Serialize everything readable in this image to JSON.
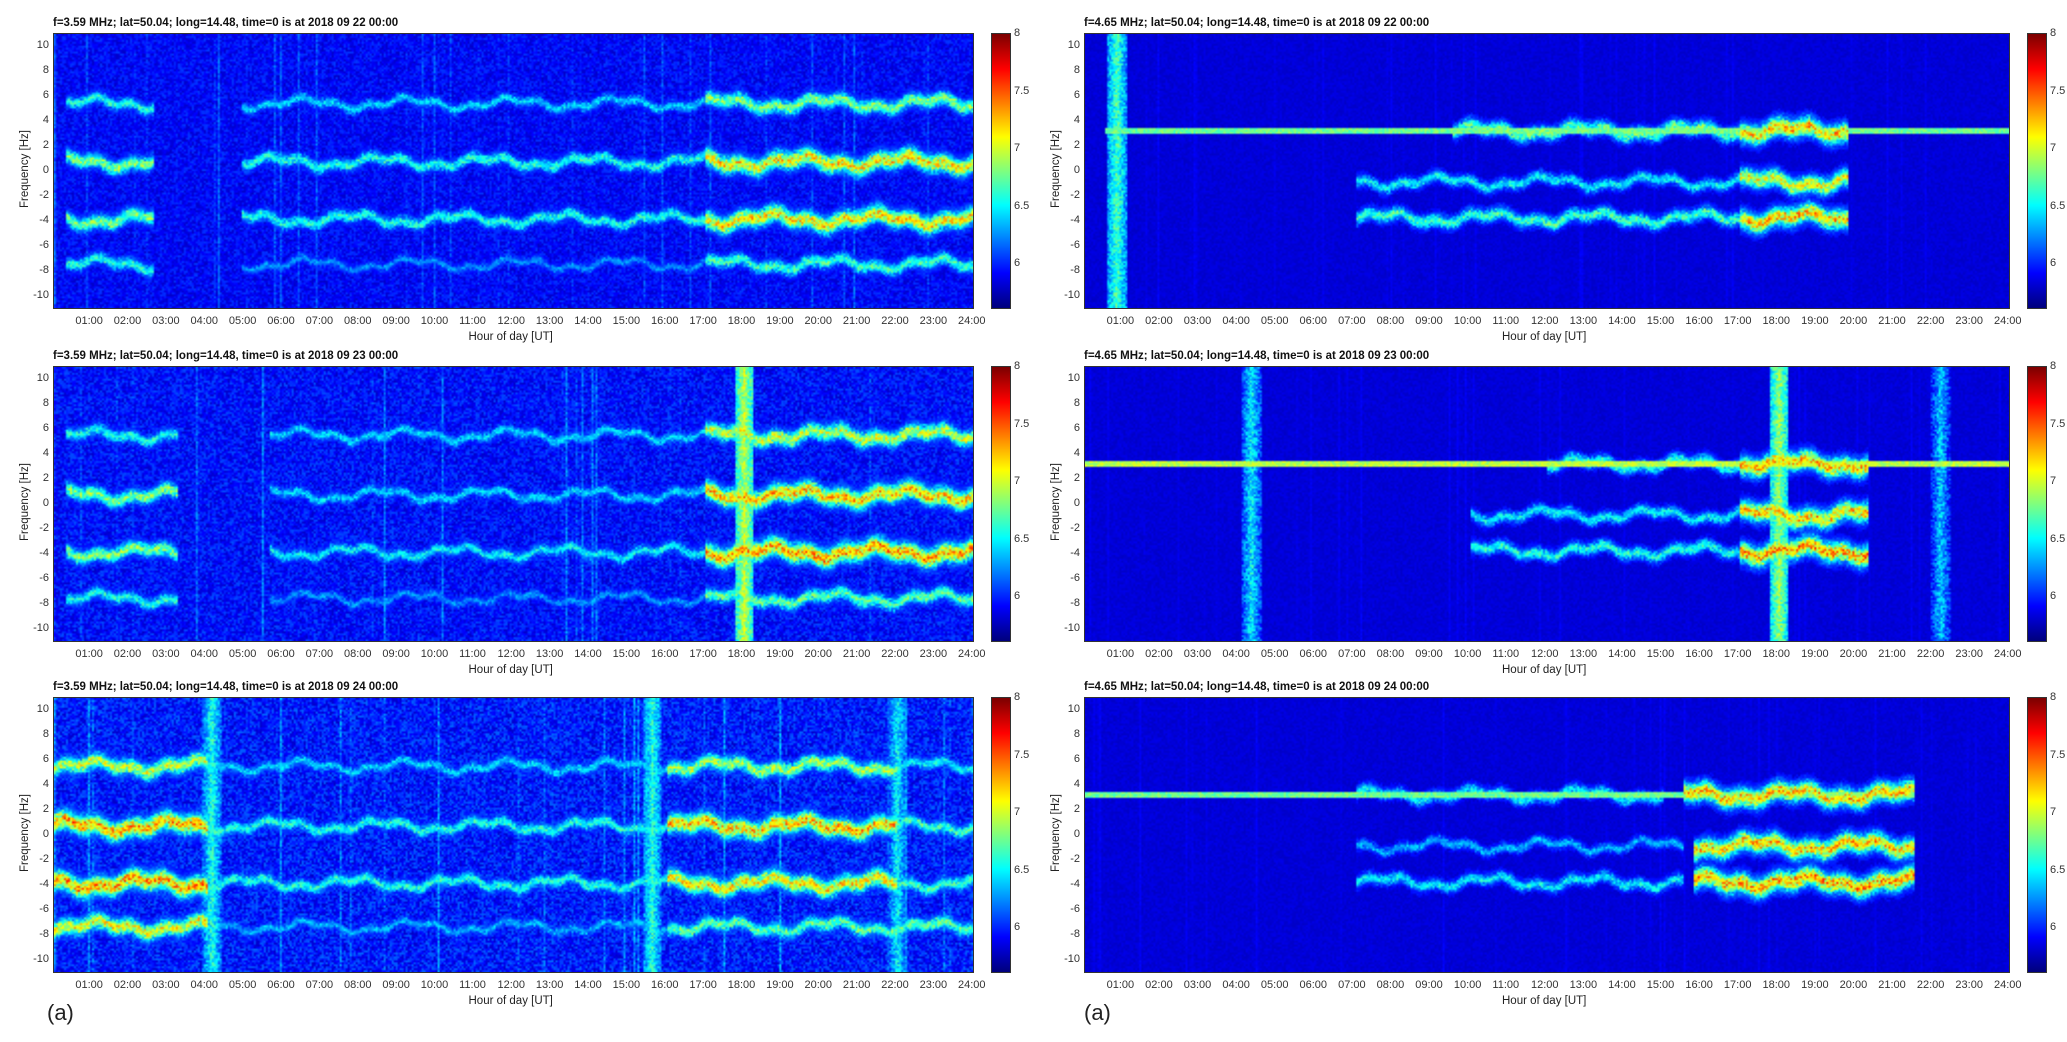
{
  "captions": [
    "(a)",
    "(a)"
  ],
  "chart_data": [
    {
      "type": "heatmap",
      "title": "f=3.59 MHz;  lat=50.04; long=14.48, time=0 is at 2018 09 22 00:00",
      "xlabel": "Hour of day [UT]",
      "ylabel": "Frequency [Hz]",
      "xlim": [
        0,
        24
      ],
      "ylim": [
        -11,
        11
      ],
      "yticks": [
        "10",
        "8",
        "6",
        "4",
        "2",
        "0",
        "-2",
        "-4",
        "-6",
        "-8",
        "-10"
      ],
      "xticks": [
        "01:00",
        "02:00",
        "03:00",
        "04:00",
        "05:00",
        "06:00",
        "07:00",
        "08:00",
        "09:00",
        "10:00",
        "11:00",
        "12:00",
        "13:00",
        "14:00",
        "15:00",
        "16:00",
        "17:00",
        "18:00",
        "19:00",
        "20:00",
        "21:00",
        "22:00",
        "23:00",
        "24:00"
      ],
      "colorbar": {
        "range": [
          5.6,
          8
        ],
        "ticks": [
          "8",
          "7.5",
          "7",
          "6.5",
          "6"
        ]
      },
      "noise": 0.25,
      "bands": [
        {
          "f": 5.5,
          "segments": [
            [
              0.3,
              2.6,
              6.7
            ],
            [
              4.9,
              17,
              6.5
            ],
            [
              17,
              24,
              7.0
            ]
          ]
        },
        {
          "f": 0.8,
          "segments": [
            [
              0.3,
              2.6,
              7.0
            ],
            [
              4.9,
              17,
              6.7
            ],
            [
              17,
              24,
              7.4
            ]
          ]
        },
        {
          "f": -3.8,
          "segments": [
            [
              0.3,
              2.6,
              7.0
            ],
            [
              4.9,
              17,
              6.7
            ],
            [
              17,
              24,
              7.4
            ]
          ]
        },
        {
          "f": -7.4,
          "segments": [
            [
              0.3,
              2.6,
              6.7
            ],
            [
              4.9,
              17,
              6.3
            ],
            [
              17,
              24,
              6.8
            ]
          ]
        }
      ],
      "lines": [],
      "bursts": []
    },
    {
      "type": "heatmap",
      "title": "f=4.65 MHz;  lat=50.04; long=14.48, time=0 is at 2018 09 22 00:00",
      "xlabel": "Hour of day [UT]",
      "ylabel": "Frequency [Hz]",
      "xlim": [
        0,
        24
      ],
      "ylim": [
        -11,
        11
      ],
      "yticks": [
        "10",
        "8",
        "6",
        "4",
        "2",
        "0",
        "-2",
        "-4",
        "-6",
        "-8",
        "-10"
      ],
      "xticks": [
        "01:00",
        "02:00",
        "03:00",
        "04:00",
        "05:00",
        "06:00",
        "07:00",
        "08:00",
        "09:00",
        "10:00",
        "11:00",
        "12:00",
        "13:00",
        "14:00",
        "15:00",
        "16:00",
        "17:00",
        "18:00",
        "19:00",
        "20:00",
        "21:00",
        "22:00",
        "23:00",
        "24:00"
      ],
      "colorbar": {
        "range": [
          5.6,
          8
        ],
        "ticks": [
          "8",
          "7.5",
          "7",
          "6.5",
          "6"
        ]
      },
      "noise": 0.08,
      "bands": [
        {
          "f": 3.3,
          "segments": [
            [
              9.5,
              17,
              6.9
            ],
            [
              17,
              19.8,
              7.5
            ]
          ]
        },
        {
          "f": -0.8,
          "segments": [
            [
              7,
              17,
              6.6
            ],
            [
              17,
              19.8,
              7.3
            ]
          ]
        },
        {
          "f": -3.7,
          "segments": [
            [
              7,
              17,
              6.8
            ],
            [
              17,
              19.8,
              7.5
            ]
          ]
        }
      ],
      "lines": [
        {
          "f": 3.3,
          "from": 0.5,
          "to": 24,
          "level": 6.6
        }
      ],
      "bursts": [
        {
          "t": 0.8,
          "level": 6.4
        }
      ]
    },
    {
      "type": "heatmap",
      "title": "f=3.59 MHz;  lat=50.04; long=14.48, time=0 is at 2018 09 23 00:00",
      "xlabel": "Hour of day [UT]",
      "ylabel": "Frequency [Hz]",
      "xlim": [
        0,
        24
      ],
      "ylim": [
        -11,
        11
      ],
      "yticks": [
        "10",
        "8",
        "6",
        "4",
        "2",
        "0",
        "-2",
        "-4",
        "-6",
        "-8",
        "-10"
      ],
      "xticks": [
        "01:00",
        "02:00",
        "03:00",
        "04:00",
        "05:00",
        "06:00",
        "07:00",
        "08:00",
        "09:00",
        "10:00",
        "11:00",
        "12:00",
        "13:00",
        "14:00",
        "15:00",
        "16:00",
        "17:00",
        "18:00",
        "19:00",
        "20:00",
        "21:00",
        "22:00",
        "23:00",
        "24:00"
      ],
      "colorbar": {
        "range": [
          5.6,
          8
        ],
        "ticks": [
          "8",
          "7.5",
          "7",
          "6.5",
          "6"
        ]
      },
      "noise": 0.3,
      "bands": [
        {
          "f": 5.6,
          "segments": [
            [
              0.3,
              3.2,
              6.7
            ],
            [
              5.6,
              17,
              6.5
            ],
            [
              17,
              24,
              7.2
            ]
          ]
        },
        {
          "f": 0.8,
          "segments": [
            [
              0.3,
              3.2,
              7.0
            ],
            [
              5.6,
              17,
              6.5
            ],
            [
              17,
              24,
              7.5
            ]
          ]
        },
        {
          "f": -3.8,
          "segments": [
            [
              0.3,
              3.2,
              7.0
            ],
            [
              5.6,
              17,
              6.6
            ],
            [
              17,
              24,
              7.6
            ]
          ]
        },
        {
          "f": -7.5,
          "segments": [
            [
              0.3,
              3.2,
              6.7
            ],
            [
              5.6,
              17,
              6.3
            ],
            [
              17,
              24,
              6.9
            ]
          ]
        }
      ],
      "lines": [],
      "bursts": [
        {
          "t": 18,
          "level": 6.7
        }
      ]
    },
    {
      "type": "heatmap",
      "title": "f=4.65 MHz;  lat=50.04; long=14.48, time=0 is at 2018 09 23 00:00",
      "xlabel": "Hour of day [UT]",
      "ylabel": "Frequency [Hz]",
      "xlim": [
        0,
        24
      ],
      "ylim": [
        -11,
        11
      ],
      "yticks": [
        "10",
        "8",
        "6",
        "4",
        "2",
        "0",
        "-2",
        "-4",
        "-6",
        "-8",
        "-10"
      ],
      "xticks": [
        "01:00",
        "02:00",
        "03:00",
        "04:00",
        "05:00",
        "06:00",
        "07:00",
        "08:00",
        "09:00",
        "10:00",
        "11:00",
        "12:00",
        "13:00",
        "14:00",
        "15:00",
        "16:00",
        "17:00",
        "18:00",
        "19:00",
        "20:00",
        "21:00",
        "22:00",
        "23:00",
        "24:00"
      ],
      "colorbar": {
        "range": [
          5.6,
          8
        ],
        "ticks": [
          "8",
          "7.5",
          "7",
          "6.5",
          "6"
        ]
      },
      "noise": 0.08,
      "bands": [
        {
          "f": 3.3,
          "segments": [
            [
              12,
              17,
              6.7
            ],
            [
              17,
              20.3,
              7.5
            ]
          ]
        },
        {
          "f": -0.8,
          "segments": [
            [
              10,
              17,
              6.6
            ],
            [
              17,
              20.3,
              7.5
            ]
          ]
        },
        {
          "f": -3.7,
          "segments": [
            [
              10,
              17,
              6.7
            ],
            [
              17,
              20.3,
              7.6
            ]
          ]
        }
      ],
      "lines": [
        {
          "f": 3.3,
          "from": 0,
          "to": 24,
          "level": 6.8
        }
      ],
      "bursts": [
        {
          "t": 18,
          "level": 6.6
        },
        {
          "t": 4.3,
          "level": 6.2
        },
        {
          "t": 22.2,
          "level": 6.1
        }
      ]
    },
    {
      "type": "heatmap",
      "title": "f=3.59 MHz;  lat=50.04; long=14.48, time=0 is at 2018 09 24 00:00",
      "xlabel": "Hour of day [UT]",
      "ylabel": "Frequency [Hz]",
      "xlim": [
        0,
        24
      ],
      "ylim": [
        -11,
        11
      ],
      "yticks": [
        "10",
        "8",
        "6",
        "4",
        "2",
        "0",
        "-2",
        "-4",
        "-6",
        "-8",
        "-10"
      ],
      "xticks": [
        "01:00",
        "02:00",
        "03:00",
        "04:00",
        "05:00",
        "06:00",
        "07:00",
        "08:00",
        "09:00",
        "10:00",
        "11:00",
        "12:00",
        "13:00",
        "14:00",
        "15:00",
        "16:00",
        "17:00",
        "18:00",
        "19:00",
        "20:00",
        "21:00",
        "22:00",
        "23:00",
        "24:00"
      ],
      "colorbar": {
        "range": [
          5.6,
          8
        ],
        "ticks": [
          "8",
          "7.5",
          "7",
          "6.5",
          "6"
        ]
      },
      "noise": 0.35,
      "bands": [
        {
          "f": 5.6,
          "segments": [
            [
              0,
              4,
              7.2
            ],
            [
              4,
              16,
              6.5
            ],
            [
              16,
              22,
              7.1
            ],
            [
              22,
              24,
              6.6
            ]
          ]
        },
        {
          "f": 0.8,
          "segments": [
            [
              0,
              4,
              7.6
            ],
            [
              4,
              16,
              6.7
            ],
            [
              16,
              22,
              7.5
            ],
            [
              22,
              24,
              6.8
            ]
          ]
        },
        {
          "f": -3.8,
          "segments": [
            [
              0,
              4,
              7.6
            ],
            [
              4,
              16,
              6.7
            ],
            [
              16,
              22,
              7.4
            ],
            [
              22,
              24,
              6.8
            ]
          ]
        },
        {
          "f": -7.3,
          "segments": [
            [
              0,
              4,
              7.3
            ],
            [
              4,
              16,
              6.4
            ],
            [
              16,
              24,
              6.9
            ]
          ]
        }
      ],
      "lines": [],
      "bursts": [
        {
          "t": 4.1,
          "level": 6.3
        },
        {
          "t": 15.6,
          "level": 6.3
        },
        {
          "t": 22,
          "level": 6.2
        }
      ]
    },
    {
      "type": "heatmap",
      "title": "f=4.65 MHz;  lat=50.04; long=14.48, time=0 is at 2018 09 24 00:00",
      "xlabel": "Hour of day [UT]",
      "ylabel": "Frequency [Hz]",
      "xlim": [
        0,
        24
      ],
      "ylim": [
        -11,
        11
      ],
      "yticks": [
        "10",
        "8",
        "6",
        "4",
        "2",
        "0",
        "-2",
        "-4",
        "-6",
        "-8",
        "-10"
      ],
      "xticks": [
        "01:00",
        "02:00",
        "03:00",
        "04:00",
        "05:00",
        "06:00",
        "07:00",
        "08:00",
        "09:00",
        "10:00",
        "11:00",
        "12:00",
        "13:00",
        "14:00",
        "15:00",
        "16:00",
        "17:00",
        "18:00",
        "19:00",
        "20:00",
        "21:00",
        "22:00",
        "23:00",
        "24:00"
      ],
      "colorbar": {
        "range": [
          5.6,
          8
        ],
        "ticks": [
          "8",
          "7.5",
          "7",
          "6.5",
          "6"
        ]
      },
      "noise": 0.08,
      "bands": [
        {
          "f": 3.3,
          "segments": [
            [
              7,
              15,
              6.6
            ],
            [
              15.5,
              21.5,
              7.5
            ]
          ]
        },
        {
          "f": -0.8,
          "segments": [
            [
              7,
              15.5,
              6.4
            ],
            [
              15.8,
              21.5,
              7.5
            ]
          ]
        },
        {
          "f": -3.7,
          "segments": [
            [
              7,
              15.5,
              6.6
            ],
            [
              15.8,
              21.5,
              7.6
            ]
          ]
        }
      ],
      "lines": [
        {
          "f": 3.3,
          "from": 0,
          "to": 21.5,
          "level": 6.6
        }
      ],
      "bursts": []
    }
  ]
}
